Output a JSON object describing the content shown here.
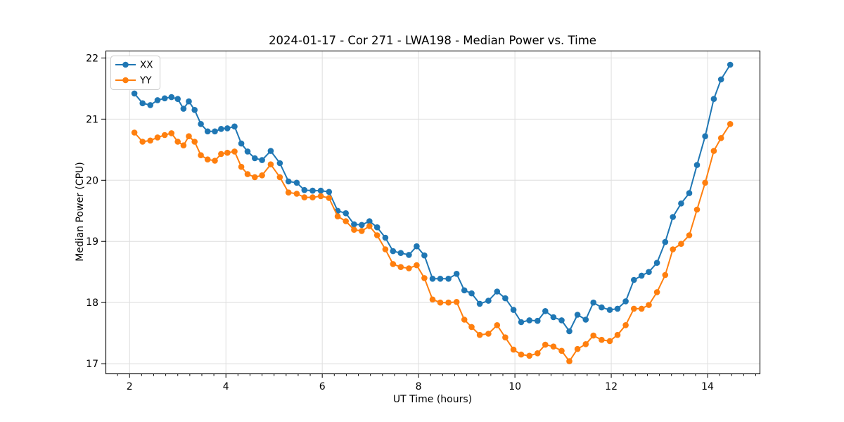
{
  "chart_data": {
    "type": "line",
    "title": "2024-01-17 - Cor 271 - LWA198 - Median Power vs. Time",
    "xlabel": "UT Time (hours)",
    "ylabel": "Median Power (CPU)",
    "xlim": [
      1.5,
      15.08
    ],
    "ylim": [
      16.84,
      22.12
    ],
    "x_major_ticks": [
      2,
      4,
      6,
      8,
      10,
      12,
      14
    ],
    "x_minor_tick_step": 0.25,
    "y_major_ticks": [
      17,
      18,
      19,
      20,
      21,
      22
    ],
    "grid": true,
    "legend_position": "upper-left",
    "background_color": "#ffffff",
    "grid_color": "#dedede",
    "spine_color": "#000000",
    "x": [
      2.1,
      2.27,
      2.43,
      2.58,
      2.73,
      2.87,
      3.0,
      3.12,
      3.23,
      3.35,
      3.48,
      3.62,
      3.77,
      3.9,
      4.03,
      4.18,
      4.32,
      4.45,
      4.6,
      4.75,
      4.93,
      5.12,
      5.3,
      5.47,
      5.63,
      5.8,
      5.97,
      6.14,
      6.32,
      6.49,
      6.66,
      6.82,
      6.98,
      7.14,
      7.31,
      7.47,
      7.63,
      7.8,
      7.96,
      8.12,
      8.29,
      8.45,
      8.62,
      8.79,
      8.95,
      9.1,
      9.27,
      9.45,
      9.63,
      9.8,
      9.97,
      10.13,
      10.3,
      10.47,
      10.63,
      10.8,
      10.97,
      11.13,
      11.3,
      11.47,
      11.63,
      11.8,
      11.97,
      12.13,
      12.3,
      12.47,
      12.63,
      12.78,
      12.95,
      13.12,
      13.28,
      13.45,
      13.62,
      13.78,
      13.95,
      14.13,
      14.28,
      14.47
    ],
    "series": [
      {
        "name": "XX",
        "color": "#1f77b4",
        "marker": "circle",
        "values": [
          21.42,
          21.26,
          21.23,
          21.31,
          21.34,
          21.36,
          21.33,
          21.17,
          21.29,
          21.15,
          20.92,
          20.8,
          20.8,
          20.84,
          20.85,
          20.88,
          20.6,
          20.47,
          20.36,
          20.33,
          20.48,
          20.28,
          19.98,
          19.96,
          19.84,
          19.83,
          19.83,
          19.81,
          19.5,
          19.46,
          19.28,
          19.27,
          19.33,
          19.23,
          19.06,
          18.84,
          18.81,
          18.78,
          18.92,
          18.77,
          18.39,
          18.39,
          18.39,
          18.47,
          18.2,
          18.15,
          17.98,
          18.03,
          18.18,
          18.07,
          17.88,
          17.68,
          17.71,
          17.7,
          17.86,
          17.76,
          17.71,
          17.53,
          17.8,
          17.72,
          18.0,
          17.92,
          17.88,
          17.9,
          18.02,
          18.37,
          18.44,
          18.5,
          18.65,
          18.99,
          19.4,
          19.62,
          19.79,
          20.25,
          20.72,
          21.33,
          21.65,
          21.89
        ]
      },
      {
        "name": "YY",
        "color": "#ff7f0e",
        "marker": "circle",
        "values": [
          20.78,
          20.63,
          20.65,
          20.7,
          20.74,
          20.77,
          20.63,
          20.57,
          20.72,
          20.63,
          20.41,
          20.34,
          20.32,
          20.43,
          20.45,
          20.47,
          20.22,
          20.1,
          20.05,
          20.08,
          20.26,
          20.05,
          19.8,
          19.78,
          19.72,
          19.72,
          19.74,
          19.71,
          19.41,
          19.33,
          19.19,
          19.17,
          19.25,
          19.1,
          18.87,
          18.63,
          18.58,
          18.56,
          18.61,
          18.4,
          18.05,
          18.0,
          18.0,
          18.01,
          17.72,
          17.6,
          17.47,
          17.49,
          17.63,
          17.43,
          17.23,
          17.15,
          17.13,
          17.17,
          17.31,
          17.28,
          17.21,
          17.04,
          17.24,
          17.32,
          17.46,
          17.39,
          17.37,
          17.47,
          17.63,
          17.9,
          17.9,
          17.96,
          18.17,
          18.45,
          18.87,
          18.96,
          19.1,
          19.52,
          19.96,
          20.48,
          20.69,
          20.92
        ]
      }
    ]
  }
}
